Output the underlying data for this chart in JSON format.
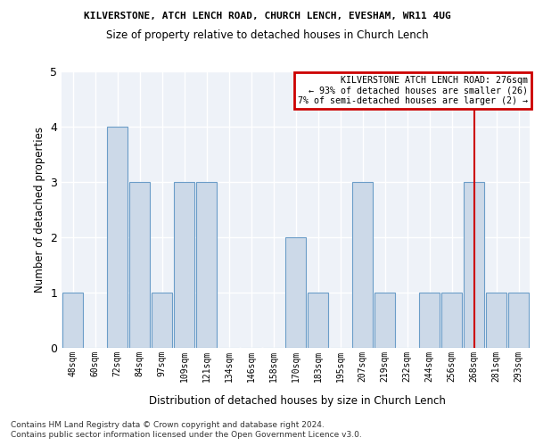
{
  "title1": "KILVERSTONE, ATCH LENCH ROAD, CHURCH LENCH, EVESHAM, WR11 4UG",
  "title2": "Size of property relative to detached houses in Church Lench",
  "xlabel": "Distribution of detached houses by size in Church Lench",
  "ylabel": "Number of detached properties",
  "categories": [
    "48sqm",
    "60sqm",
    "72sqm",
    "84sqm",
    "97sqm",
    "109sqm",
    "121sqm",
    "134sqm",
    "146sqm",
    "158sqm",
    "170sqm",
    "183sqm",
    "195sqm",
    "207sqm",
    "219sqm",
    "232sqm",
    "244sqm",
    "256sqm",
    "268sqm",
    "281sqm",
    "293sqm"
  ],
  "values": [
    1,
    0,
    4,
    3,
    1,
    3,
    3,
    0,
    0,
    0,
    2,
    1,
    0,
    3,
    1,
    0,
    1,
    1,
    3,
    1,
    1
  ],
  "bar_color": "#ccd9e8",
  "bar_edge_color": "#6b9dc8",
  "ylim": [
    0,
    5
  ],
  "yticks": [
    0,
    1,
    2,
    3,
    4,
    5
  ],
  "vline_x": 18,
  "vline_color": "#cc0000",
  "annotation_text": "KILVERSTONE ATCH LENCH ROAD: 276sqm\n← 93% of detached houses are smaller (26)\n7% of semi-detached houses are larger (2) →",
  "annotation_box_color": "#cc0000",
  "footer_line1": "Contains HM Land Registry data © Crown copyright and database right 2024.",
  "footer_line2": "Contains public sector information licensed under the Open Government Licence v3.0.",
  "bg_color": "#eef2f8"
}
